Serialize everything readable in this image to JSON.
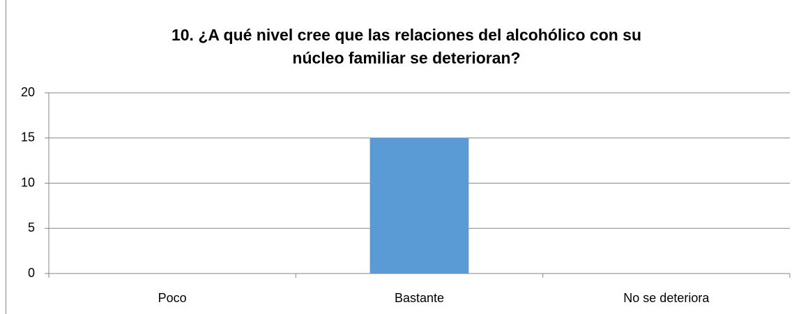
{
  "chart_data": {
    "type": "bar",
    "title": "10. ¿A qué nivel cree que las relaciones del alcohólico con su núcleo familiar se deterioran?",
    "categories": [
      "Poco",
      "Bastante",
      "No se deteriora"
    ],
    "values": [
      0,
      15,
      0
    ],
    "color": "#5b9bd5",
    "ylim": [
      0,
      20
    ],
    "yticks": [
      0,
      5,
      10,
      15,
      20
    ],
    "grid": true
  }
}
